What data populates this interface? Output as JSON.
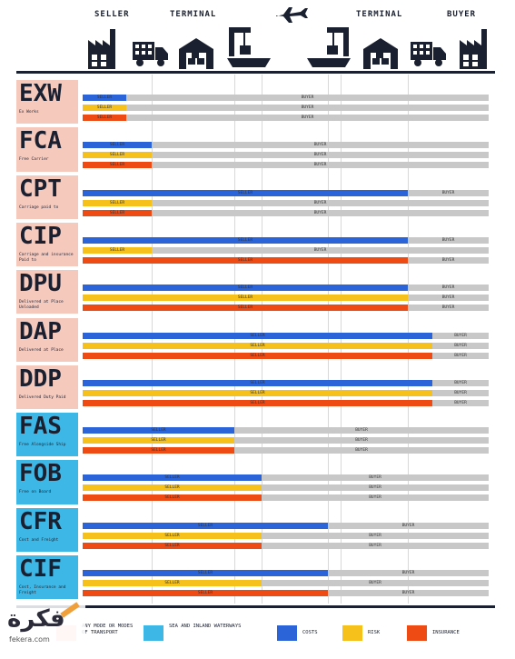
{
  "header": {
    "seller": "SELLER",
    "terminal_left": "TERMINAL",
    "terminal_right": "TERMINAL",
    "buyer": "BUYER"
  },
  "icons": [
    "factory-icon",
    "truck-icon",
    "warehouse-icon",
    "port-crane-icon",
    "airplane-icon",
    "port-crane-icon",
    "warehouse-icon",
    "truck-icon",
    "factory-icon"
  ],
  "colors": {
    "costs": "#2a64d8",
    "risk": "#f5c11a",
    "insurance": "#ee4a14",
    "buyer_bar": "#c8c8c8",
    "any_mode_bg": "#f6c9bd",
    "sea_bg": "#3db8e6",
    "dark": "#1a2030"
  },
  "bar_labels": {
    "seller": "SELLER",
    "buyer": "BUYER"
  },
  "terms": [
    {
      "code": "EXW",
      "desc": "Ex Works",
      "group": "any",
      "bars": [
        {
          "type": "costs",
          "split": 1
        },
        {
          "type": "risk",
          "split": 1
        },
        {
          "type": "insurance",
          "split": 1
        }
      ]
    },
    {
      "code": "FCA",
      "desc": "Free Carrier",
      "group": "any",
      "bars": [
        {
          "type": "costs",
          "split": 2
        },
        {
          "type": "risk",
          "split": 2
        },
        {
          "type": "insurance",
          "split": 2
        }
      ]
    },
    {
      "code": "CPT",
      "desc": "Carriage paid to",
      "group": "any",
      "bars": [
        {
          "type": "costs",
          "split": 7
        },
        {
          "type": "risk",
          "split": 2
        },
        {
          "type": "insurance",
          "split": 2
        }
      ]
    },
    {
      "code": "CIP",
      "desc": "Carriage and insurance Paid to",
      "group": "any",
      "bars": [
        {
          "type": "costs",
          "split": 7
        },
        {
          "type": "risk",
          "split": 2
        },
        {
          "type": "insurance",
          "split": 7
        }
      ]
    },
    {
      "code": "DPU",
      "desc": "Delivered at Place Unloaded",
      "group": "any",
      "bars": [
        {
          "type": "costs",
          "split": 7
        },
        {
          "type": "risk",
          "split": 7
        },
        {
          "type": "insurance",
          "split": 7
        }
      ]
    },
    {
      "code": "DAP",
      "desc": "Delivered at Place",
      "group": "any",
      "bars": [
        {
          "type": "costs",
          "split": 8
        },
        {
          "type": "risk",
          "split": 8
        },
        {
          "type": "insurance",
          "split": 8
        }
      ]
    },
    {
      "code": "DDP",
      "desc": "Delivered Duty Paid",
      "group": "any",
      "bars": [
        {
          "type": "costs",
          "split": 8
        },
        {
          "type": "risk",
          "split": 8
        },
        {
          "type": "insurance",
          "split": 8
        }
      ]
    },
    {
      "code": "FAS",
      "desc": "Free Alongside Ship",
      "group": "sea",
      "bars": [
        {
          "type": "costs",
          "split": 3
        },
        {
          "type": "risk",
          "split": 3
        },
        {
          "type": "insurance",
          "split": 3
        }
      ]
    },
    {
      "code": "FOB",
      "desc": "Free on Board",
      "group": "sea",
      "bars": [
        {
          "type": "costs",
          "split": 4
        },
        {
          "type": "risk",
          "split": 4
        },
        {
          "type": "insurance",
          "split": 4
        }
      ]
    },
    {
      "code": "CFR",
      "desc": "Cost and Freight",
      "group": "sea",
      "bars": [
        {
          "type": "costs",
          "split": 5
        },
        {
          "type": "risk",
          "split": 4
        },
        {
          "type": "insurance",
          "split": 4
        }
      ]
    },
    {
      "code": "CIF",
      "desc": "Cost, Insurance and Freight",
      "group": "sea",
      "bars": [
        {
          "type": "costs",
          "split": 5
        },
        {
          "type": "risk",
          "split": 4
        },
        {
          "type": "insurance",
          "split": 5
        }
      ]
    }
  ],
  "legend": {
    "any_mode": "ANY MODE OR MODES OF TRANSPORT",
    "sea": "SEA AND INLAND WATERWAYS",
    "costs": "COSTS",
    "risk": "RISK",
    "insurance": "INSURANCE"
  },
  "watermark": {
    "brand": "فكرة",
    "site": "fekera.com"
  }
}
